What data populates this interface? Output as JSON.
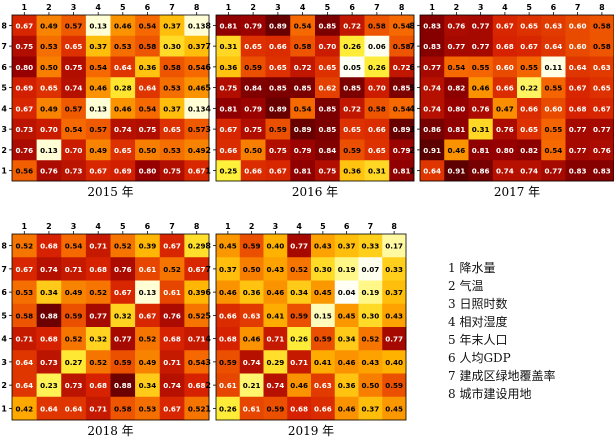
{
  "chart_data": [
    {
      "type": "heatmap",
      "title": "2015 年",
      "x_tick_labels": [
        "1",
        "2",
        "3",
        "4",
        "5",
        "6",
        "7",
        "8"
      ],
      "y_tick_labels": [
        "8",
        "7",
        "6",
        "5",
        "4",
        "3",
        "2",
        "1"
      ],
      "values": [
        [
          0.67,
          0.49,
          0.57,
          0.13,
          0.46,
          0.54,
          0.37,
          0.13
        ],
        [
          0.75,
          0.53,
          0.65,
          0.37,
          0.53,
          0.58,
          0.3,
          0.37
        ],
        [
          0.8,
          0.5,
          0.75,
          0.54,
          0.64,
          0.36,
          0.58,
          0.54
        ],
        [
          0.69,
          0.65,
          0.74,
          0.46,
          0.28,
          0.64,
          0.53,
          0.46
        ],
        [
          0.67,
          0.49,
          0.57,
          0.13,
          0.46,
          0.54,
          0.37,
          0.13
        ],
        [
          0.73,
          0.7,
          0.54,
          0.57,
          0.74,
          0.75,
          0.65,
          0.57
        ],
        [
          0.76,
          0.13,
          0.7,
          0.49,
          0.65,
          0.5,
          0.53,
          0.49
        ],
        [
          0.56,
          0.76,
          0.73,
          0.67,
          0.69,
          0.8,
          0.75,
          0.67
        ]
      ]
    },
    {
      "type": "heatmap",
      "title": "2016 年",
      "x_tick_labels": [
        "1",
        "2",
        "3",
        "4",
        "5",
        "6",
        "7",
        "8"
      ],
      "y_tick_labels": [
        "8",
        "7",
        "6",
        "5",
        "4",
        "3",
        "2",
        "1"
      ],
      "values": [
        [
          0.81,
          0.79,
          0.89,
          0.54,
          0.85,
          0.72,
          0.58,
          0.54
        ],
        [
          0.31,
          0.65,
          0.66,
          0.58,
          0.7,
          0.26,
          0.06,
          0.58
        ],
        [
          0.36,
          0.59,
          0.65,
          0.72,
          0.65,
          0.05,
          0.26,
          0.72
        ],
        [
          0.75,
          0.84,
          0.85,
          0.85,
          0.62,
          0.85,
          0.7,
          0.85
        ],
        [
          0.81,
          0.79,
          0.89,
          0.54,
          0.85,
          0.72,
          0.58,
          0.54
        ],
        [
          0.67,
          0.75,
          0.59,
          0.89,
          0.85,
          0.65,
          0.66,
          0.89
        ],
        [
          0.66,
          0.5,
          0.75,
          0.79,
          0.84,
          0.59,
          0.65,
          0.79
        ],
        [
          0.25,
          0.66,
          0.67,
          0.81,
          0.75,
          0.36,
          0.31,
          0.81
        ]
      ]
    },
    {
      "type": "heatmap",
      "title": "2017 年",
      "x_tick_labels": [
        "1",
        "2",
        "3",
        "4",
        "5",
        "6",
        "7",
        "8"
      ],
      "y_tick_labels": [
        "8",
        "7",
        "6",
        "5",
        "4",
        "3",
        "2",
        "1"
      ],
      "values": [
        [
          0.83,
          0.76,
          0.77,
          0.67,
          0.65,
          0.63,
          0.6,
          0.58
        ],
        [
          0.83,
          0.77,
          0.77,
          0.68,
          0.67,
          0.64,
          0.6,
          0.58
        ],
        [
          0.77,
          0.54,
          0.55,
          0.6,
          0.55,
          0.11,
          0.64,
          0.63
        ],
        [
          0.74,
          0.82,
          0.46,
          0.66,
          0.22,
          0.55,
          0.67,
          0.65
        ],
        [
          0.74,
          0.8,
          0.76,
          0.47,
          0.66,
          0.6,
          0.68,
          0.67
        ],
        [
          0.86,
          0.81,
          0.31,
          0.76,
          0.65,
          0.55,
          0.77,
          0.77
        ],
        [
          0.91,
          0.46,
          0.81,
          0.8,
          0.82,
          0.54,
          0.77,
          0.76
        ],
        [
          0.64,
          0.91,
          0.86,
          0.74,
          0.74,
          0.77,
          0.83,
          0.83
        ]
      ]
    },
    {
      "type": "heatmap",
      "title": "2018 年",
      "x_tick_labels": [
        "1",
        "2",
        "3",
        "4",
        "5",
        "6",
        "7",
        "8"
      ],
      "y_tick_labels": [
        "8",
        "7",
        "6",
        "5",
        "4",
        "3",
        "2",
        "1"
      ],
      "values": [
        [
          0.52,
          0.68,
          0.54,
          0.71,
          0.52,
          0.39,
          0.67,
          0.29
        ],
        [
          0.67,
          0.74,
          0.71,
          0.68,
          0.76,
          0.61,
          0.52,
          0.67
        ],
        [
          0.53,
          0.34,
          0.49,
          0.52,
          0.67,
          0.13,
          0.61,
          0.39
        ],
        [
          0.58,
          0.88,
          0.59,
          0.77,
          0.32,
          0.67,
          0.76,
          0.52
        ],
        [
          0.71,
          0.68,
          0.52,
          0.32,
          0.77,
          0.52,
          0.68,
          0.71
        ],
        [
          0.64,
          0.73,
          0.27,
          0.52,
          0.59,
          0.49,
          0.71,
          0.54
        ],
        [
          0.64,
          0.23,
          0.73,
          0.68,
          0.88,
          0.34,
          0.74,
          0.68
        ],
        [
          0.42,
          0.64,
          0.64,
          0.71,
          0.58,
          0.53,
          0.67,
          0.52
        ]
      ]
    },
    {
      "type": "heatmap",
      "title": "2019 年",
      "x_tick_labels": [
        "1",
        "2",
        "3",
        "4",
        "5",
        "6",
        "7",
        "8"
      ],
      "y_tick_labels": [
        "8",
        "7",
        "6",
        "5",
        "4",
        "3",
        "2",
        "1"
      ],
      "values": [
        [
          0.45,
          0.59,
          0.4,
          0.77,
          0.43,
          0.37,
          0.33,
          0.17
        ],
        [
          0.37,
          0.5,
          0.43,
          0.52,
          0.3,
          0.19,
          0.07,
          0.33
        ],
        [
          0.46,
          0.36,
          0.46,
          0.34,
          0.45,
          0.04,
          0.19,
          0.37
        ],
        [
          0.66,
          0.63,
          0.41,
          0.59,
          0.15,
          0.45,
          0.3,
          0.43
        ],
        [
          0.68,
          0.46,
          0.71,
          0.26,
          0.59,
          0.34,
          0.52,
          0.77
        ],
        [
          0.59,
          0.74,
          0.29,
          0.71,
          0.41,
          0.46,
          0.43,
          0.4
        ],
        [
          0.61,
          0.21,
          0.74,
          0.46,
          0.63,
          0.36,
          0.5,
          0.59
        ],
        [
          0.26,
          0.61,
          0.59,
          0.68,
          0.66,
          0.46,
          0.37,
          0.45
        ]
      ]
    }
  ],
  "legend": [
    "1 降水量",
    "2 气温",
    "3 日照时数",
    "4 相对湿度",
    "5 年末人口",
    "6 人均GDP",
    "7 建成区绿地覆盖率",
    "8 城市建设用地"
  ]
}
